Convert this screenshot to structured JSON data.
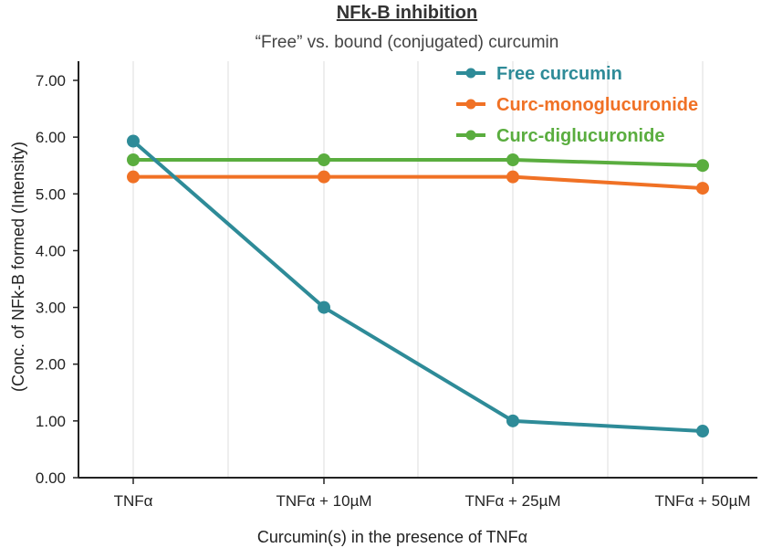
{
  "chart_data": {
    "type": "line",
    "title": "NFk-B inhibition",
    "subtitle": "“Free” vs. bound (conjugated) curcumin",
    "xlabel": "Curcumin(s) in the presence of TNFα",
    "ylabel": "(Conc. of NFk-B formed (Intensity)",
    "categories": [
      "TNFα",
      "TNFα + 10µM",
      "TNFα + 25µM",
      "TNFα + 50µM"
    ],
    "ylim": [
      0,
      7
    ],
    "yticks": [
      "0.00",
      "1.00",
      "2.00",
      "3.00",
      "4.00",
      "5.00",
      "6.00",
      "7.00"
    ],
    "grid": "vertical",
    "legend_position": "top-right",
    "series": [
      {
        "name": "Free curcumin",
        "color": "#2e8b98",
        "values": [
          5.93,
          3.0,
          1.0,
          0.82
        ]
      },
      {
        "name": "Curc-monoglucuronide",
        "color": "#f07125",
        "values": [
          5.3,
          5.3,
          5.3,
          5.1
        ]
      },
      {
        "name": "Curc-diglucuronide",
        "color": "#5aad3f",
        "values": [
          5.6,
          5.6,
          5.6,
          5.5
        ]
      }
    ]
  }
}
